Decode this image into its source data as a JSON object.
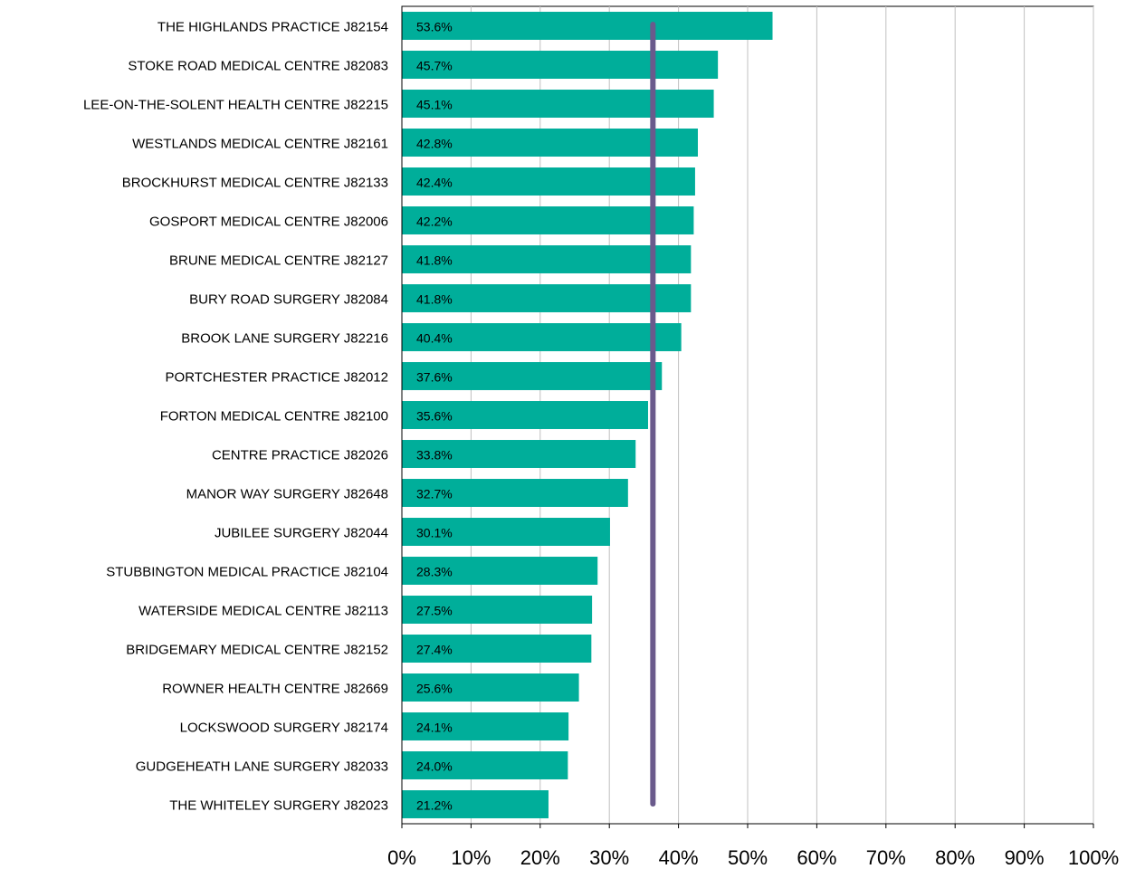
{
  "chart_data": {
    "type": "bar",
    "orientation": "horizontal",
    "categories": [
      "THE HIGHLANDS PRACTICE J82154",
      "STOKE ROAD MEDICAL CENTRE J82083",
      "LEE-ON-THE-SOLENT HEALTH CENTRE J82215",
      "WESTLANDS MEDICAL CENTRE J82161",
      "BROCKHURST MEDICAL CENTRE J82133",
      "GOSPORT MEDICAL CENTRE J82006",
      "BRUNE MEDICAL CENTRE J82127",
      "BURY ROAD SURGERY J82084",
      "BROOK LANE SURGERY J82216",
      "PORTCHESTER PRACTICE J82012",
      "FORTON MEDICAL CENTRE J82100",
      "CENTRE PRACTICE J82026",
      "MANOR WAY SURGERY J82648",
      "JUBILEE SURGERY J82044",
      "STUBBINGTON MEDICAL PRACTICE J82104",
      "WATERSIDE MEDICAL CENTRE J82113",
      "BRIDGEMARY MEDICAL CENTRE J82152",
      "ROWNER HEALTH CENTRE J82669",
      "LOCKSWOOD SURGERY J82174",
      "GUDGEHEATH LANE SURGERY J82033",
      "THE WHITELEY SURGERY J82023"
    ],
    "values": [
      53.6,
      45.7,
      45.1,
      42.8,
      42.4,
      42.2,
      41.8,
      41.8,
      40.4,
      37.6,
      35.6,
      33.8,
      32.7,
      30.1,
      28.3,
      27.5,
      27.4,
      25.6,
      24.1,
      24.0,
      21.2
    ],
    "data_labels": [
      "53.6%",
      "45.7%",
      "45.1%",
      "42.8%",
      "42.4%",
      "42.2%",
      "41.8%",
      "41.8%",
      "40.4%",
      "37.6%",
      "35.6%",
      "33.8%",
      "32.7%",
      "30.1%",
      "28.3%",
      "27.5%",
      "27.4%",
      "25.6%",
      "24.1%",
      "24.0%",
      "21.2%"
    ],
    "reference_line_value": 36.3,
    "xlim": [
      0,
      100
    ],
    "x_ticks": [
      0,
      10,
      20,
      30,
      40,
      50,
      60,
      70,
      80,
      90,
      100
    ],
    "x_tick_labels": [
      "0%",
      "10%",
      "20%",
      "30%",
      "40%",
      "50%",
      "60%",
      "70%",
      "80%",
      "90%",
      "100%"
    ],
    "grid": true,
    "colors": {
      "bar": "#00ae9a",
      "reference_line": "#6a5a8c",
      "grid": "#c0c0c0",
      "axis": "#000000"
    }
  }
}
